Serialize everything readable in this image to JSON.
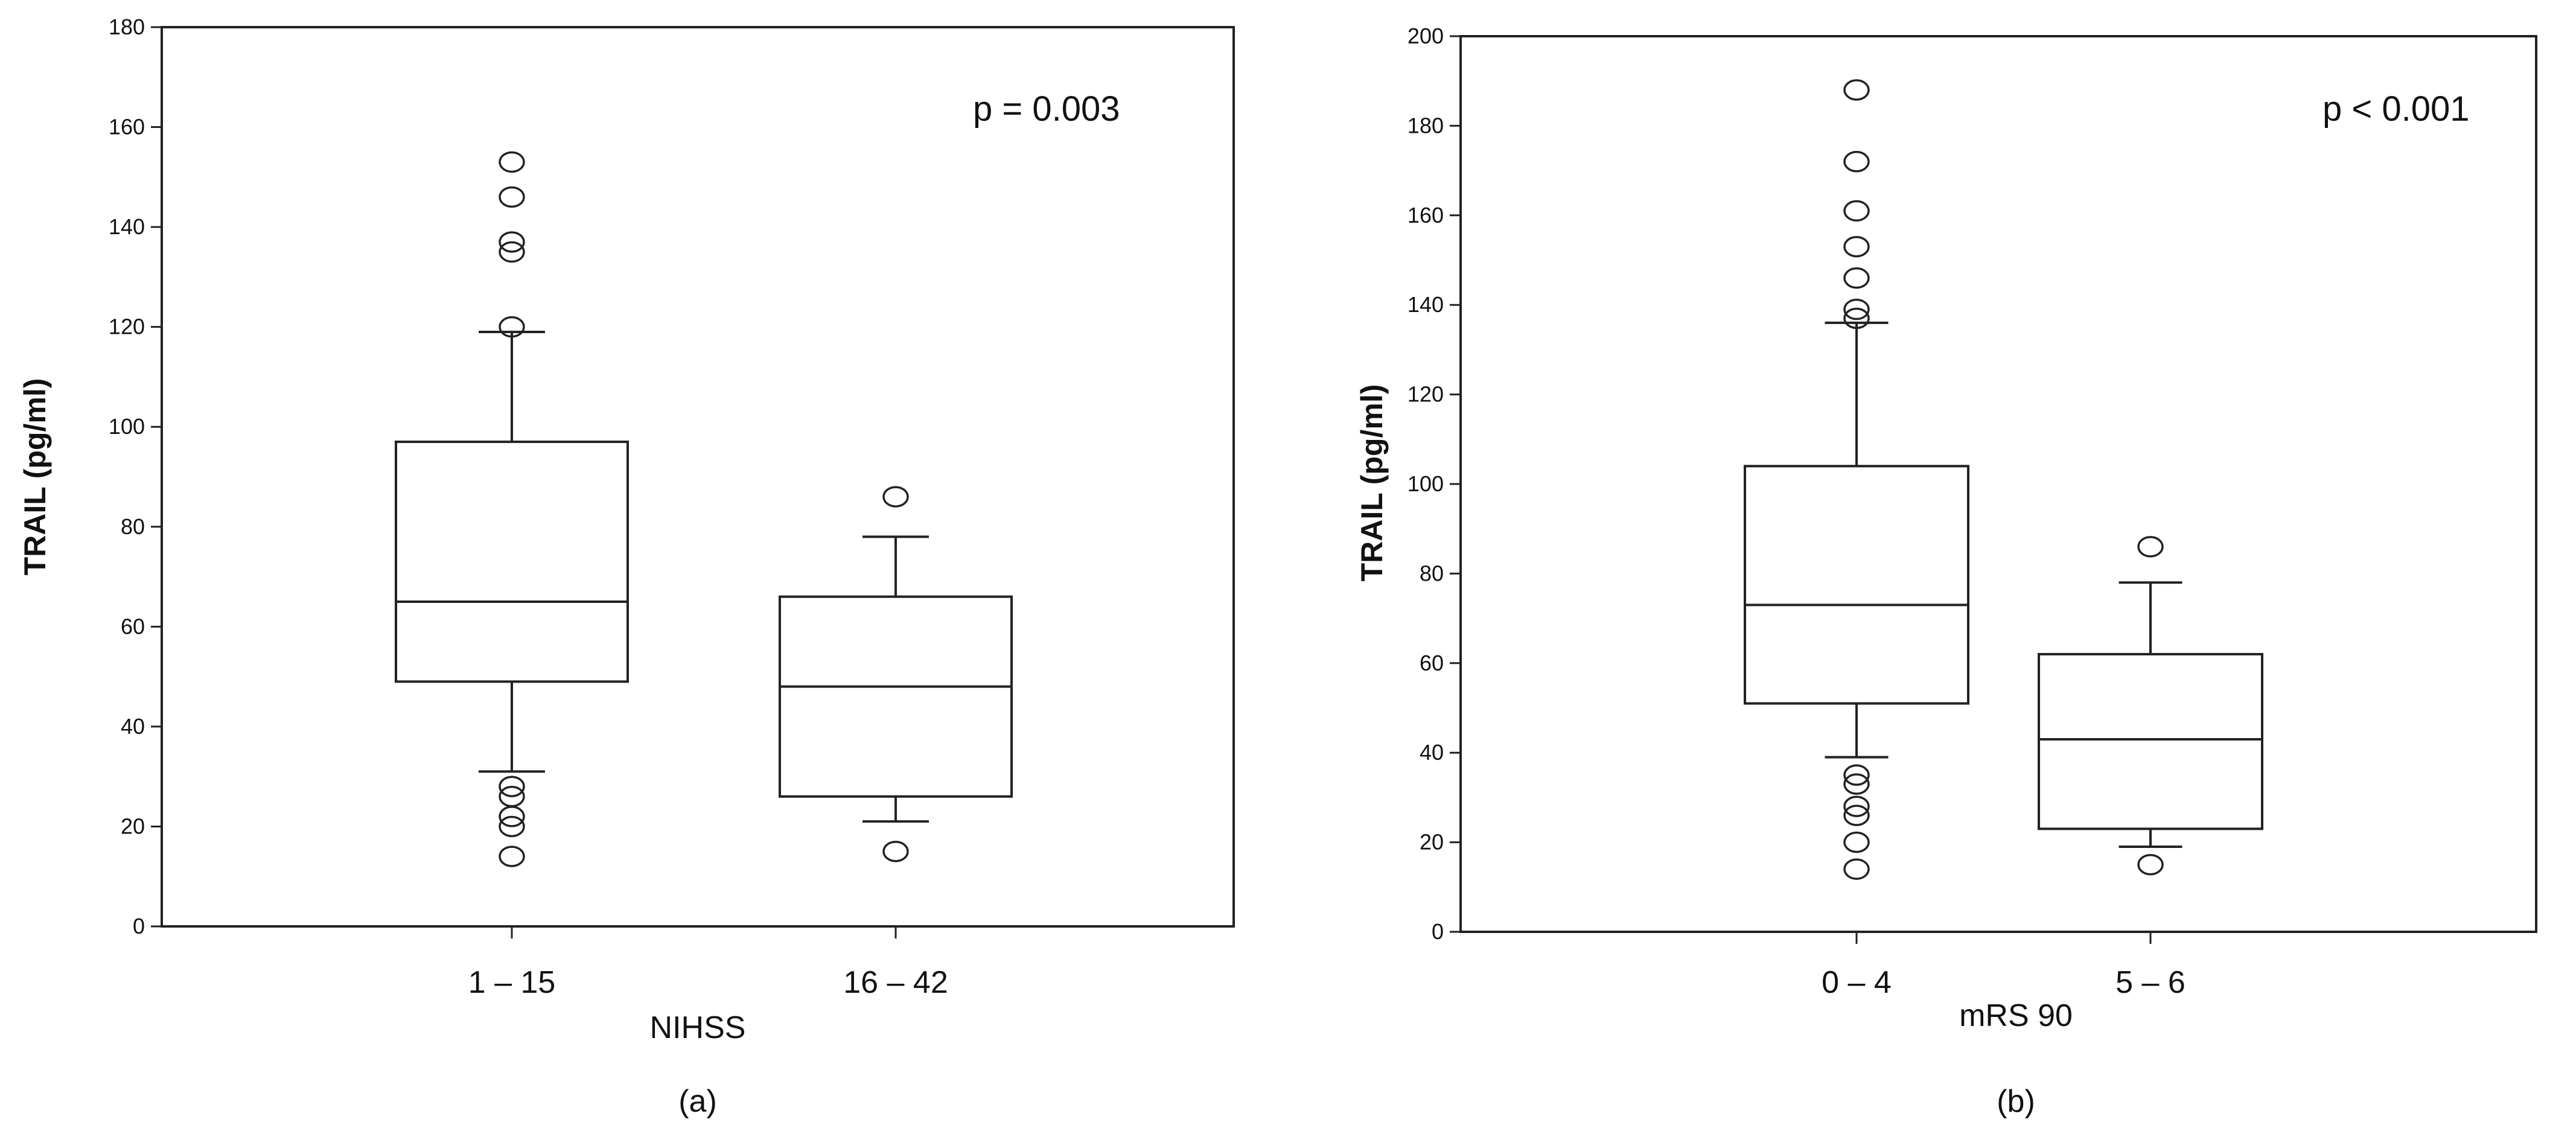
{
  "chart_data": [
    {
      "type": "boxplot",
      "caption": "(a)",
      "xlabel": "NIHSS",
      "ylabel": "TRAIL (pg/ml)",
      "ylim": [
        0,
        180
      ],
      "yticks": [
        "0",
        "20",
        "40",
        "60",
        "80",
        "100",
        "120",
        "140",
        "160",
        "180"
      ],
      "annotation": "p = 0.003",
      "categories": [
        "1 – 15",
        "16 – 42"
      ],
      "boxes": [
        {
          "whisker_low": 31,
          "q1": 49,
          "median": 65,
          "q3": 97,
          "whisker_high": 119,
          "outliers": [
            14,
            20,
            22,
            26,
            28,
            120,
            135,
            137,
            146,
            153
          ]
        },
        {
          "whisker_low": 21,
          "q1": 26,
          "median": 48,
          "q3": 66,
          "whisker_high": 78,
          "outliers": [
            15,
            86
          ]
        }
      ]
    },
    {
      "type": "boxplot",
      "caption": "(b)",
      "xlabel": "mRS 90",
      "ylabel": "TRAIL (pg/ml)",
      "ylim": [
        0,
        200
      ],
      "yticks": [
        "0",
        "20",
        "40",
        "60",
        "80",
        "100",
        "120",
        "140",
        "160",
        "180",
        "200"
      ],
      "annotation": "p < 0.001",
      "categories": [
        "0 – 4",
        "5 – 6"
      ],
      "boxes": [
        {
          "whisker_low": 39,
          "q1": 51,
          "median": 73,
          "q3": 104,
          "whisker_high": 136,
          "outliers": [
            14,
            20,
            26,
            28,
            33,
            35,
            137,
            139,
            146,
            153,
            161,
            172,
            188
          ]
        },
        {
          "whisker_low": 19,
          "q1": 23,
          "median": 43,
          "q3": 62,
          "whisker_high": 78,
          "outliers": [
            15,
            86
          ]
        }
      ]
    }
  ]
}
